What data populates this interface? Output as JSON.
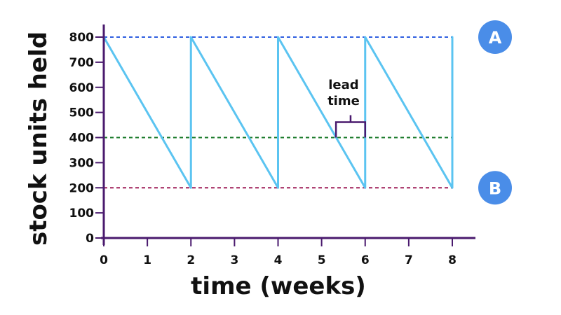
{
  "chart_data": {
    "type": "line",
    "xlabel": "time (weeks)",
    "ylabel": "stock units held",
    "xlim": [
      0,
      8
    ],
    "ylim": [
      0,
      800
    ],
    "x_ticks": [
      0,
      1,
      2,
      3,
      4,
      5,
      6,
      7,
      8
    ],
    "y_ticks": [
      0,
      100,
      200,
      300,
      400,
      500,
      600,
      700,
      800
    ],
    "series": [
      {
        "color": "#5bc4f1",
        "x": [
          0,
          2,
          2,
          4,
          4,
          6,
          6,
          8,
          8
        ],
        "y": [
          800,
          200,
          800,
          200,
          800,
          200,
          800,
          200,
          800
        ]
      }
    ],
    "reference_lines": [
      {
        "y": 800,
        "color": "#2f5fe0",
        "style": "dashed",
        "label": "A",
        "badge_color": "#4a8de8"
      },
      {
        "y": 400,
        "color": "#1a7a2a",
        "style": "dashed"
      },
      {
        "y": 200,
        "color": "#a0205a",
        "style": "dashed",
        "label": "B",
        "badge_color": "#4a8de8"
      }
    ],
    "annotation": {
      "text_lines": [
        "lead",
        "time"
      ],
      "x_start": 5.33,
      "x_end": 6,
      "y": 400,
      "color": "#4a1a6e"
    },
    "axis_color": "#4a1a6e"
  }
}
